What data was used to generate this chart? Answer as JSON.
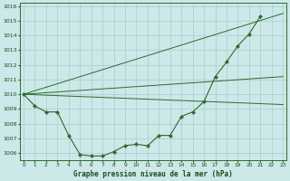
{
  "title": "Graphe pression niveau de la mer (hPa)",
  "bg_color": "#cce8e8",
  "line_color": "#2d6b2d",
  "grid_color": "#aacccc",
  "ylim": [
    1005.5,
    1016.2
  ],
  "xlim": [
    -0.3,
    23.3
  ],
  "yticks": [
    1006,
    1007,
    1008,
    1009,
    1010,
    1011,
    1012,
    1013,
    1014,
    1015,
    1016
  ],
  "xticks": [
    0,
    1,
    2,
    3,
    4,
    5,
    6,
    7,
    8,
    9,
    10,
    11,
    12,
    13,
    14,
    15,
    16,
    17,
    18,
    19,
    20,
    21,
    22,
    23
  ],
  "main_series": {
    "x": [
      0,
      1,
      2,
      3,
      4,
      5,
      6,
      7,
      8,
      9,
      10,
      11,
      12,
      13,
      14,
      15,
      16,
      17,
      18,
      19,
      20,
      21
    ],
    "y": [
      1010.0,
      1009.2,
      1008.8,
      1008.8,
      1007.2,
      1005.9,
      1005.8,
      1005.8,
      1006.1,
      1006.5,
      1006.6,
      1006.5,
      1007.2,
      1007.2,
      1008.5,
      1008.8,
      1009.5,
      1011.2,
      1012.2,
      1013.3,
      1014.1,
      1015.3
    ]
  },
  "straight_lines": [
    {
      "x": [
        0,
        23
      ],
      "y": [
        1010.0,
        1015.5
      ]
    },
    {
      "x": [
        0,
        23
      ],
      "y": [
        1010.0,
        1011.2
      ]
    },
    {
      "x": [
        0,
        23
      ],
      "y": [
        1010.0,
        1009.3
      ]
    }
  ]
}
